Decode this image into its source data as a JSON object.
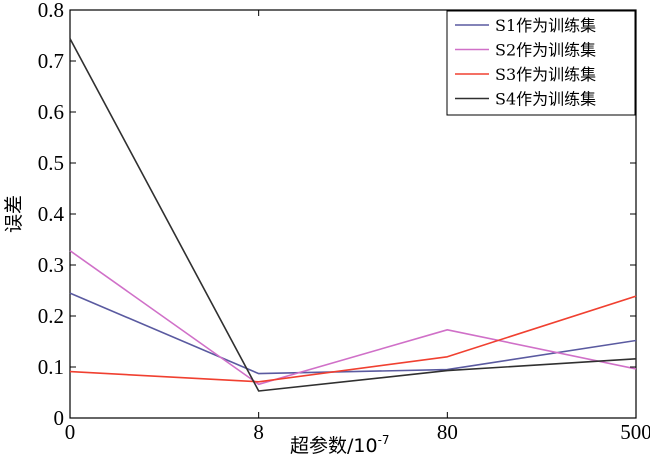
{
  "chart_data": {
    "type": "line",
    "title": "",
    "xlabel_main": "超参数/10",
    "xlabel_sup": "-7",
    "ylabel": "误差",
    "categories": [
      "0",
      "8",
      "80",
      "500"
    ],
    "ylim": [
      0,
      0.8
    ],
    "yticks": [
      0,
      0.1,
      0.2,
      0.3,
      0.4,
      0.5,
      0.6,
      0.7,
      0.8
    ],
    "ytick_labels": [
      "0",
      "0.1",
      "0.2",
      "0.3",
      "0.4",
      "0.5",
      "0.6",
      "0.7",
      "0.8"
    ],
    "grid": false,
    "legend_position": "top-right",
    "series": [
      {
        "name": "S1作为训练集",
        "color": "#5a5aa0",
        "values": [
          0.245,
          0.087,
          0.095,
          0.152
        ]
      },
      {
        "name": "S2作为训练集",
        "color": "#d070c8",
        "values": [
          0.328,
          0.066,
          0.173,
          0.096
        ]
      },
      {
        "name": "S3作为训练集",
        "color": "#f04030",
        "values": [
          0.091,
          0.071,
          0.12,
          0.239
        ]
      },
      {
        "name": "S4作为训练集",
        "color": "#303030",
        "values": [
          0.744,
          0.053,
          0.093,
          0.116
        ]
      }
    ]
  }
}
